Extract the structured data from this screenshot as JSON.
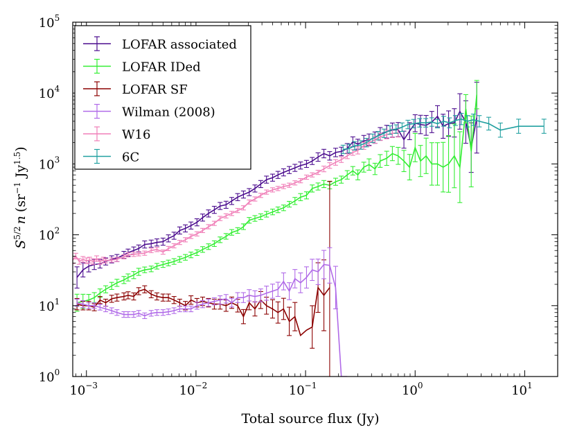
{
  "chart_data": {
    "type": "line",
    "title": "",
    "xlabel": "Total source flux (Jy)",
    "ylabel_main": "S",
    "ylabel_sup": "5/2",
    "ylabel_n": "n",
    "ylabel_units_pre": "(sr",
    "ylabel_units_sup1": "−1",
    "ylabel_units_mid": " Jy",
    "ylabel_units_sup2": "1.5",
    "ylabel_units_post": ")",
    "xscale": "log",
    "yscale": "log",
    "xlim": [
      0.00075,
      20
    ],
    "ylim": [
      1,
      100000
    ],
    "xticks": [
      {
        "value": 0.001,
        "base": "10",
        "exp": "−3"
      },
      {
        "value": 0.01,
        "base": "10",
        "exp": "−2"
      },
      {
        "value": 0.1,
        "base": "10",
        "exp": "−1"
      },
      {
        "value": 1,
        "base": "10",
        "exp": "0"
      },
      {
        "value": 10,
        "base": "10",
        "exp": "1"
      }
    ],
    "yticks": [
      {
        "value": 1,
        "base": "10",
        "exp": "0"
      },
      {
        "value": 10,
        "base": "10",
        "exp": "1"
      },
      {
        "value": 100,
        "base": "10",
        "exp": "2"
      },
      {
        "value": 1000,
        "base": "10",
        "exp": "3"
      },
      {
        "value": 10000,
        "base": "10",
        "exp": "4"
      },
      {
        "value": 100000,
        "base": "10",
        "exp": "5"
      }
    ],
    "legend_position": "top-left",
    "series": [
      {
        "name": "LOFAR associated",
        "color": "#4b0c8e",
        "x": [
          0.00082,
          0.00093,
          0.00105,
          0.00118,
          0.00133,
          0.0015,
          0.0017,
          0.0019,
          0.0022,
          0.0024,
          0.0027,
          0.003,
          0.0034,
          0.0039,
          0.0044,
          0.005,
          0.0056,
          0.0063,
          0.0071,
          0.008,
          0.009,
          0.0102,
          0.0115,
          0.013,
          0.0147,
          0.0166,
          0.0188,
          0.0212,
          0.024,
          0.0271,
          0.0306,
          0.0345,
          0.039,
          0.044,
          0.05,
          0.056,
          0.063,
          0.071,
          0.08,
          0.09,
          0.102,
          0.115,
          0.13,
          0.147,
          0.166,
          0.188,
          0.212,
          0.24,
          0.27,
          0.3,
          0.34,
          0.38,
          0.43,
          0.48,
          0.55,
          0.62,
          0.7,
          0.79,
          0.89,
          1.0,
          1.12,
          1.26,
          1.42,
          1.6,
          1.8,
          2.02,
          2.28,
          2.56,
          2.9,
          3.25,
          3.65
        ],
        "y": [
          25,
          32,
          36,
          38,
          39,
          42,
          45,
          47,
          52,
          56,
          60,
          64,
          73,
          75,
          78,
          80,
          89,
          97,
          115,
          123,
          135,
          150,
          175,
          200,
          225,
          255,
          265,
          300,
          340,
          370,
          400,
          450,
          520,
          600,
          640,
          700,
          760,
          820,
          880,
          950,
          1000,
          1100,
          1250,
          1400,
          1300,
          1450,
          1500,
          1650,
          2050,
          1900,
          2100,
          2200,
          2350,
          2650,
          2850,
          3000,
          3050,
          2200,
          2900,
          3750,
          3600,
          3500,
          3900,
          4700,
          3400,
          3700,
          3800,
          5500,
          3900,
          1700,
          4500
        ],
        "err": [
          0.15,
          0.1,
          0.08,
          0.07,
          0.06,
          0.05,
          0.05,
          0.05,
          0.05,
          0.05,
          0.05,
          0.05,
          0.05,
          0.05,
          0.05,
          0.05,
          0.05,
          0.05,
          0.05,
          0.05,
          0.05,
          0.05,
          0.05,
          0.05,
          0.05,
          0.05,
          0.05,
          0.05,
          0.05,
          0.05,
          0.05,
          0.05,
          0.05,
          0.05,
          0.05,
          0.05,
          0.05,
          0.05,
          0.05,
          0.05,
          0.05,
          0.05,
          0.06,
          0.06,
          0.06,
          0.06,
          0.06,
          0.07,
          0.07,
          0.07,
          0.08,
          0.08,
          0.08,
          0.09,
          0.09,
          0.1,
          0.1,
          0.12,
          0.12,
          0.12,
          0.13,
          0.14,
          0.15,
          0.15,
          0.17,
          0.18,
          0.2,
          0.25,
          0.3,
          0.35,
          0.5
        ]
      },
      {
        "name": "LOFAR IDed",
        "color": "#33ee33",
        "x": [
          0.00082,
          0.00093,
          0.00105,
          0.00118,
          0.00133,
          0.0015,
          0.0017,
          0.0019,
          0.0022,
          0.0024,
          0.0027,
          0.003,
          0.0034,
          0.0039,
          0.0044,
          0.005,
          0.0056,
          0.0063,
          0.0071,
          0.008,
          0.009,
          0.0102,
          0.0115,
          0.013,
          0.0147,
          0.0166,
          0.0188,
          0.0212,
          0.024,
          0.0271,
          0.0306,
          0.0345,
          0.039,
          0.044,
          0.05,
          0.056,
          0.063,
          0.071,
          0.08,
          0.09,
          0.102,
          0.115,
          0.13,
          0.147,
          0.166,
          0.188,
          0.212,
          0.24,
          0.27,
          0.3,
          0.34,
          0.38,
          0.43,
          0.48,
          0.55,
          0.62,
          0.7,
          0.79,
          0.89,
          1.0,
          1.12,
          1.26,
          1.42,
          1.6,
          1.8,
          2.02,
          2.28,
          2.56,
          2.9,
          3.25,
          3.65
        ],
        "y": [
          11,
          11.5,
          12,
          13,
          15,
          17,
          19,
          21,
          23,
          25,
          27,
          30,
          32,
          33,
          36,
          38,
          40,
          42,
          45,
          48,
          52,
          56,
          62,
          68,
          75,
          85,
          95,
          108,
          115,
          130,
          160,
          170,
          180,
          195,
          210,
          225,
          240,
          270,
          300,
          340,
          360,
          450,
          480,
          520,
          500,
          560,
          600,
          700,
          800,
          700,
          900,
          980,
          850,
          1100,
          1200,
          1400,
          1300,
          1100,
          900,
          1700,
          1100,
          1300,
          1000,
          1000,
          900,
          1000,
          1300,
          900,
          6000,
          1500,
          9500
        ],
        "err": [
          0.12,
          0.1,
          0.08,
          0.07,
          0.06,
          0.05,
          0.05,
          0.05,
          0.05,
          0.05,
          0.05,
          0.05,
          0.04,
          0.04,
          0.04,
          0.04,
          0.04,
          0.04,
          0.04,
          0.04,
          0.04,
          0.04,
          0.04,
          0.04,
          0.04,
          0.04,
          0.04,
          0.04,
          0.04,
          0.04,
          0.04,
          0.04,
          0.04,
          0.04,
          0.04,
          0.04,
          0.04,
          0.04,
          0.05,
          0.05,
          0.05,
          0.05,
          0.05,
          0.05,
          0.05,
          0.05,
          0.05,
          0.06,
          0.06,
          0.07,
          0.07,
          0.08,
          0.08,
          0.09,
          0.1,
          0.1,
          0.12,
          0.15,
          0.18,
          0.2,
          0.22,
          0.25,
          0.3,
          0.3,
          0.35,
          0.4,
          0.45,
          0.5,
          0.2,
          0.5,
          0.2
        ]
      },
      {
        "name": "LOFAR SF",
        "color": "#8b0000",
        "x": [
          0.00082,
          0.00093,
          0.00105,
          0.00118,
          0.00133,
          0.0015,
          0.0017,
          0.0019,
          0.0022,
          0.0024,
          0.0027,
          0.003,
          0.0034,
          0.0039,
          0.0044,
          0.005,
          0.0056,
          0.0063,
          0.0071,
          0.008,
          0.009,
          0.0102,
          0.0115,
          0.013,
          0.0147,
          0.0166,
          0.0188,
          0.0212,
          0.024,
          0.0271,
          0.0306,
          0.0345,
          0.039,
          0.044,
          0.05,
          0.056,
          0.063,
          0.071,
          0.08,
          0.09,
          0.102,
          0.115,
          0.13,
          0.147,
          0.166
        ],
        "y": [
          10.5,
          10,
          10,
          9.5,
          12,
          11,
          12.5,
          13,
          13.5,
          14,
          13.5,
          16,
          17,
          14.5,
          13.5,
          13,
          13,
          12,
          11,
          10,
          12,
          11,
          11.5,
          11,
          10.5,
          10.5,
          10,
          11,
          10,
          7,
          11,
          9,
          12,
          10,
          9,
          8,
          9,
          6,
          7,
          3.8,
          4.5,
          5,
          18,
          14,
          18
        ],
        "err": [
          0.08,
          0.06,
          0.06,
          0.05,
          0.05,
          0.05,
          0.05,
          0.05,
          0.05,
          0.05,
          0.05,
          0.05,
          0.05,
          0.05,
          0.05,
          0.05,
          0.05,
          0.05,
          0.05,
          0.06,
          0.06,
          0.06,
          0.06,
          0.06,
          0.07,
          0.07,
          0.08,
          0.08,
          0.09,
          0.1,
          0.1,
          0.1,
          0.12,
          0.12,
          0.13,
          0.15,
          0.15,
          0.2,
          0.2,
          0.0,
          0.0,
          0.3,
          0.35,
          0.5,
          1.5
        ]
      },
      {
        "name": "Wilman (2008)",
        "color": "#b06ae8",
        "x": [
          0.00082,
          0.00093,
          0.00105,
          0.00118,
          0.00133,
          0.0015,
          0.0017,
          0.0019,
          0.0022,
          0.0024,
          0.0027,
          0.003,
          0.0034,
          0.0039,
          0.0044,
          0.005,
          0.0056,
          0.0063,
          0.0071,
          0.008,
          0.009,
          0.0102,
          0.0115,
          0.013,
          0.0147,
          0.0166,
          0.0188,
          0.0212,
          0.024,
          0.0271,
          0.0306,
          0.0345,
          0.039,
          0.044,
          0.05,
          0.056,
          0.063,
          0.071,
          0.08,
          0.09,
          0.102,
          0.115,
          0.13,
          0.147,
          0.166,
          0.188,
          0.212,
          0.24
        ],
        "y": [
          11,
          10.5,
          10,
          10,
          9.5,
          9,
          8.5,
          8,
          7.5,
          7.5,
          7.5,
          7.8,
          7.2,
          7.8,
          8,
          8,
          8.2,
          8.5,
          9,
          9,
          9,
          10,
          10.5,
          11,
          11.5,
          12,
          12.5,
          11,
          13,
          13,
          14,
          13.5,
          14,
          15,
          16,
          17,
          22,
          16,
          24,
          21,
          25,
          32,
          30,
          38,
          37,
          18,
          1,
          1
        ],
        "err": [
          0.05,
          0.05,
          0.04,
          0.04,
          0.04,
          0.04,
          0.04,
          0.04,
          0.04,
          0.04,
          0.04,
          0.04,
          0.04,
          0.04,
          0.04,
          0.04,
          0.04,
          0.04,
          0.04,
          0.04,
          0.04,
          0.05,
          0.05,
          0.05,
          0.05,
          0.06,
          0.06,
          0.06,
          0.07,
          0.07,
          0.08,
          0.08,
          0.09,
          0.1,
          0.1,
          0.1,
          0.12,
          0.12,
          0.13,
          0.14,
          0.15,
          0.15,
          0.18,
          0.2,
          0.25,
          0.3,
          0.0,
          0.0
        ]
      },
      {
        "name": "W16",
        "color": "#f07fb8",
        "x": [
          0.00075,
          0.0008,
          0.00086,
          0.00093,
          0.001,
          0.00107,
          0.00115,
          0.00124,
          0.00133,
          0.00143,
          0.0015,
          0.0017,
          0.0019,
          0.0022,
          0.0024,
          0.0027,
          0.003,
          0.0034,
          0.0039,
          0.0044,
          0.005,
          0.0056,
          0.0063,
          0.0071,
          0.008,
          0.009,
          0.0102,
          0.0115,
          0.013,
          0.0147,
          0.0166,
          0.0188,
          0.0212,
          0.024,
          0.0271,
          0.0306,
          0.0345,
          0.039,
          0.044,
          0.05,
          0.056,
          0.063,
          0.071,
          0.08,
          0.09,
          0.102,
          0.115,
          0.13,
          0.147,
          0.166,
          0.188,
          0.212,
          0.24,
          0.27,
          0.3,
          0.34,
          0.38,
          0.43,
          0.48,
          0.55,
          0.62,
          0.7
        ],
        "y": [
          44,
          50,
          42,
          45,
          43,
          44,
          42,
          46,
          42,
          44,
          43,
          44,
          45,
          49,
          52,
          53,
          54,
          55,
          60,
          62,
          57,
          64,
          70,
          78,
          85,
          95,
          103,
          115,
          130,
          145,
          170,
          185,
          200,
          220,
          240,
          290,
          320,
          360,
          400,
          430,
          450,
          480,
          500,
          540,
          580,
          650,
          700,
          760,
          850,
          950,
          1050,
          1150,
          1300,
          1450,
          1550,
          1800,
          2000,
          2200,
          2400,
          2600,
          2700,
          2750
        ],
        "err": [
          0.05,
          0.04,
          0.04,
          0.04,
          0.04,
          0.04,
          0.04,
          0.04,
          0.04,
          0.04,
          0.03,
          0.03,
          0.03,
          0.03,
          0.03,
          0.03,
          0.03,
          0.03,
          0.03,
          0.03,
          0.03,
          0.03,
          0.03,
          0.03,
          0.03,
          0.03,
          0.03,
          0.03,
          0.03,
          0.03,
          0.03,
          0.03,
          0.03,
          0.03,
          0.03,
          0.03,
          0.03,
          0.03,
          0.03,
          0.03,
          0.03,
          0.03,
          0.03,
          0.03,
          0.03,
          0.03,
          0.03,
          0.03,
          0.04,
          0.04,
          0.04,
          0.04,
          0.04,
          0.04,
          0.05,
          0.05,
          0.05,
          0.05,
          0.05,
          0.06,
          0.06,
          0.06
        ]
      },
      {
        "name": "6C",
        "color": "#20a0a0",
        "x": [
          0.22,
          0.25,
          0.28,
          0.32,
          0.36,
          0.41,
          0.46,
          0.52,
          0.59,
          0.67,
          0.76,
          0.86,
          0.97,
          1.1,
          1.25,
          1.42,
          1.6,
          1.82,
          2.06,
          2.33,
          2.64,
          3.0,
          3.4,
          3.85,
          4.7,
          6.0,
          8.8,
          15.0
        ],
        "y": [
          1600,
          1650,
          1800,
          1850,
          2000,
          2300,
          2500,
          2700,
          3000,
          3100,
          3300,
          3600,
          3700,
          3800,
          3800,
          3900,
          3700,
          4000,
          3800,
          4100,
          4300,
          4000,
          4200,
          4000,
          3700,
          3000,
          3400,
          3400
        ],
        "err": [
          0.06,
          0.06,
          0.06,
          0.06,
          0.06,
          0.06,
          0.06,
          0.06,
          0.06,
          0.06,
          0.06,
          0.06,
          0.06,
          0.06,
          0.06,
          0.06,
          0.06,
          0.07,
          0.07,
          0.07,
          0.08,
          0.08,
          0.08,
          0.08,
          0.09,
          0.1,
          0.1,
          0.1
        ]
      }
    ]
  }
}
